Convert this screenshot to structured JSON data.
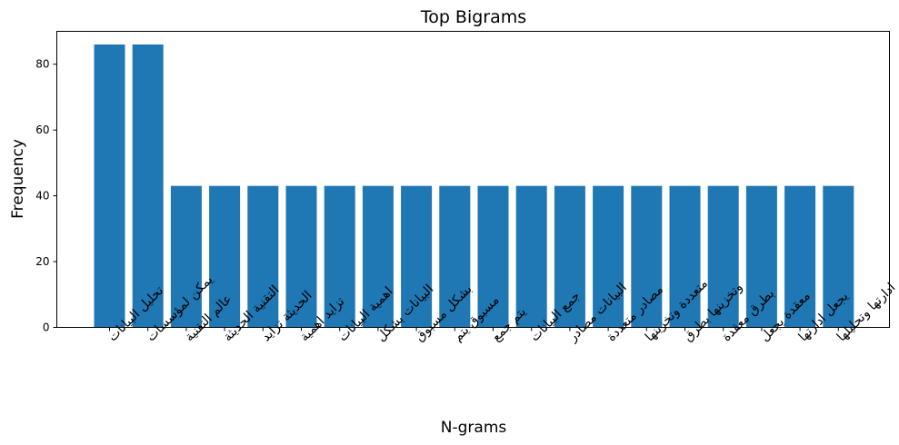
{
  "chart_data": {
    "type": "bar",
    "title": "Top Bigrams",
    "xlabel": "N-grams",
    "ylabel": "Frequency",
    "ylim": [
      0,
      90
    ],
    "yticks": [
      0,
      20,
      40,
      60,
      80
    ],
    "grid": false,
    "bar_color": "#1f77b4",
    "categories": [
      "تحليل البيانات",
      "يمكن لمؤسسات",
      "عالم التقنية",
      "التقنية الحديثة",
      "الحديثة تزايد",
      "تزايد اهمية",
      "اهمية البيانات",
      "البيانات بشكل",
      "بشكل مسبوق",
      "مسبوق يتم",
      "يتم جمع",
      "جمع البيانات",
      "البيانات مصادر",
      "مصادر متعددة",
      "متعددة وتخزينها",
      "وتخزينها بطرق",
      "بطرق معقدة",
      "معقدة يجعل",
      "يجعل ادارتها",
      "ادارتها وتحليلها"
    ],
    "values": [
      86,
      86,
      43,
      43,
      43,
      43,
      43,
      43,
      43,
      43,
      43,
      43,
      43,
      43,
      43,
      43,
      43,
      43,
      43,
      43
    ]
  }
}
